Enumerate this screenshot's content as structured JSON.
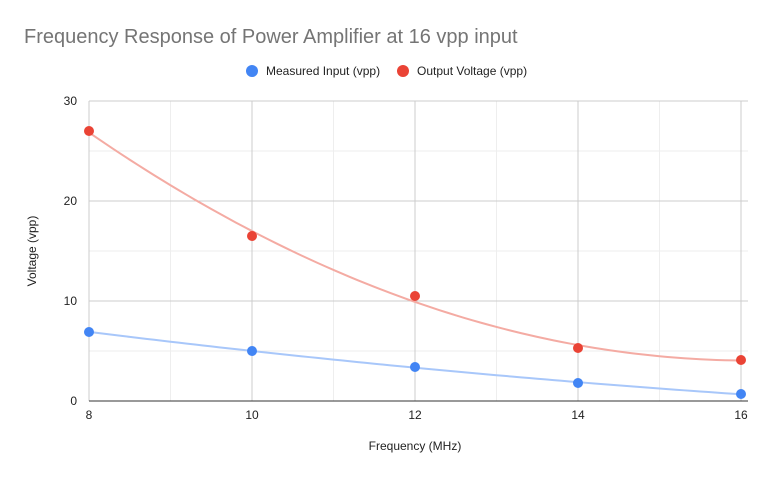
{
  "chart_data": {
    "type": "scatter",
    "title": "Frequency Response of Power Amplifier at 16 vpp input",
    "xlabel": "Frequency (MHz)",
    "ylabel": "Voltage (vpp)",
    "xlim": [
      8,
      16
    ],
    "ylim": [
      0,
      30
    ],
    "xticks": [
      8,
      10,
      12,
      14,
      16
    ],
    "yticks": [
      0,
      10,
      20,
      30
    ],
    "grid": true,
    "legend_position": "top",
    "series": [
      {
        "name": "Measured Input (vpp)",
        "color": "#4285f4",
        "trendline_color": "#a8c7fa",
        "trendline": "polynomial",
        "x": [
          8,
          10,
          12,
          14,
          16
        ],
        "y": [
          6.9,
          5.0,
          3.4,
          1.8,
          0.7
        ]
      },
      {
        "name": "Output Voltage (vpp)",
        "color": "#ea4335",
        "trendline_color": "#f4aba3",
        "trendline": "polynomial",
        "x": [
          8,
          10,
          12,
          14,
          16
        ],
        "y": [
          27.0,
          16.5,
          10.5,
          5.3,
          4.1
        ]
      }
    ]
  }
}
